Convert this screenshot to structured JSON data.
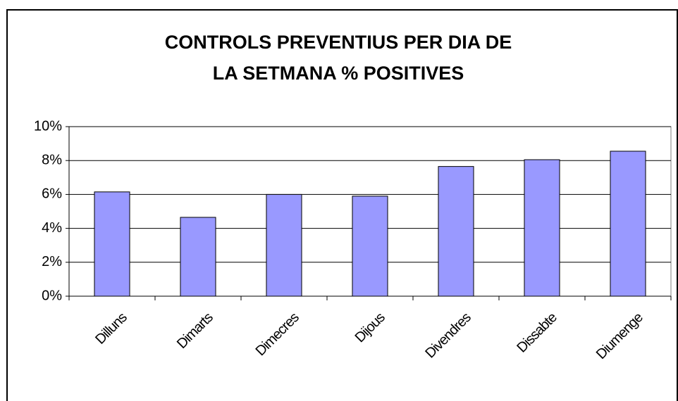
{
  "chart_data": {
    "type": "bar",
    "title": "CONTROLS PREVENTIUS PER DIA DE LA SETMANA % POSITIVES",
    "categories": [
      "Dilluns",
      "Dimarts",
      "Dimecres",
      "Dijous",
      "Divendres",
      "Dissabte",
      "Diumenge"
    ],
    "values": [
      6.15,
      4.65,
      6.0,
      5.9,
      7.65,
      8.05,
      8.55
    ],
    "color": "#9999ff",
    "ylim": [
      0,
      10
    ],
    "yticks": [
      {
        "value": 0,
        "label": "0%"
      },
      {
        "value": 2,
        "label": "2%"
      },
      {
        "value": 4,
        "label": "4%"
      },
      {
        "value": 6,
        "label": "6%"
      },
      {
        "value": 8,
        "label": "8%"
      },
      {
        "value": 10,
        "label": "10%"
      }
    ],
    "grid": true
  }
}
